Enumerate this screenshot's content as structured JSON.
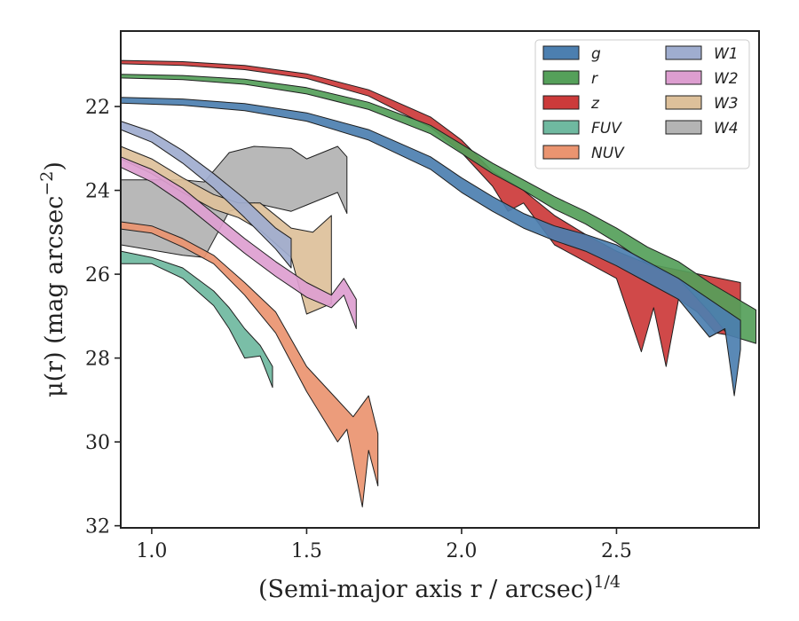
{
  "chart_data": {
    "type": "area",
    "title": "",
    "xlabel": "(Semi-major axis r / arcsec)",
    "xlabel_superscript": "1/4",
    "ylabel": "μ(r) (mag arcsec",
    "ylabel_superscript": "−2",
    "ylabel_suffix": ")",
    "xlim": [
      0.9,
      2.96
    ],
    "ylim": [
      32.05,
      20.2
    ],
    "y_inverted": true,
    "xticks": [
      1.0,
      1.5,
      2.0,
      2.5
    ],
    "xtick_labels": [
      "1.0",
      "1.5",
      "2.0",
      "2.5"
    ],
    "yticks": [
      22,
      24,
      26,
      28,
      30,
      32
    ],
    "ytick_labels": [
      "22",
      "24",
      "26",
      "28",
      "30",
      "32"
    ],
    "grid": false,
    "legend_position": "top-right",
    "legend_columns": 2,
    "series": [
      {
        "name": "g",
        "color": "#4c7fb0",
        "upper": [
          [
            0.9,
            21.78
          ],
          [
            1.1,
            21.82
          ],
          [
            1.3,
            21.93
          ],
          [
            1.5,
            22.15
          ],
          [
            1.7,
            22.55
          ],
          [
            1.9,
            23.2
          ],
          [
            2.0,
            23.7
          ],
          [
            2.1,
            24.15
          ],
          [
            2.2,
            24.55
          ],
          [
            2.3,
            24.85
          ],
          [
            2.4,
            25.05
          ],
          [
            2.5,
            25.3
          ],
          [
            2.6,
            25.7
          ],
          [
            2.7,
            26.1
          ],
          [
            2.8,
            26.6
          ],
          [
            2.9,
            27.1
          ]
        ],
        "lower": [
          [
            0.9,
            21.92
          ],
          [
            1.1,
            21.97
          ],
          [
            1.3,
            22.1
          ],
          [
            1.5,
            22.35
          ],
          [
            1.7,
            22.8
          ],
          [
            1.9,
            23.5
          ],
          [
            2.0,
            24.05
          ],
          [
            2.1,
            24.5
          ],
          [
            2.2,
            24.9
          ],
          [
            2.3,
            25.2
          ],
          [
            2.4,
            25.45
          ],
          [
            2.5,
            25.8
          ],
          [
            2.6,
            26.2
          ],
          [
            2.7,
            26.6
          ],
          [
            2.8,
            27.5
          ],
          [
            2.85,
            27.3
          ],
          [
            2.88,
            28.9
          ],
          [
            2.9,
            27.8
          ]
        ]
      },
      {
        "name": "r",
        "color": "#55a05a",
        "upper": [
          [
            0.9,
            21.23
          ],
          [
            1.1,
            21.26
          ],
          [
            1.3,
            21.35
          ],
          [
            1.5,
            21.55
          ],
          [
            1.7,
            21.9
          ],
          [
            1.9,
            22.45
          ],
          [
            2.0,
            22.9
          ],
          [
            2.1,
            23.35
          ],
          [
            2.2,
            23.75
          ],
          [
            2.3,
            24.15
          ],
          [
            2.4,
            24.5
          ],
          [
            2.5,
            24.9
          ],
          [
            2.6,
            25.35
          ],
          [
            2.7,
            25.7
          ],
          [
            2.8,
            26.2
          ],
          [
            2.95,
            26.85
          ]
        ],
        "lower": [
          [
            0.9,
            21.32
          ],
          [
            1.1,
            21.36
          ],
          [
            1.3,
            21.47
          ],
          [
            1.5,
            21.7
          ],
          [
            1.7,
            22.07
          ],
          [
            1.9,
            22.65
          ],
          [
            2.0,
            23.12
          ],
          [
            2.1,
            23.6
          ],
          [
            2.2,
            24.0
          ],
          [
            2.3,
            24.45
          ],
          [
            2.4,
            24.8
          ],
          [
            2.5,
            25.25
          ],
          [
            2.6,
            25.75
          ],
          [
            2.7,
            26.1
          ],
          [
            2.8,
            26.9
          ],
          [
            2.86,
            27.45
          ],
          [
            2.95,
            27.65
          ]
        ]
      },
      {
        "name": "z",
        "color": "#cc3a3a",
        "upper": [
          [
            0.9,
            20.9
          ],
          [
            1.1,
            20.93
          ],
          [
            1.3,
            21.02
          ],
          [
            1.5,
            21.22
          ],
          [
            1.7,
            21.6
          ],
          [
            1.9,
            22.25
          ],
          [
            2.0,
            22.8
          ],
          [
            2.1,
            23.55
          ],
          [
            2.2,
            24.0
          ],
          [
            2.3,
            24.6
          ],
          [
            2.4,
            25.05
          ],
          [
            2.5,
            25.45
          ],
          [
            2.6,
            25.75
          ],
          [
            2.7,
            25.9
          ],
          [
            2.9,
            26.2
          ]
        ],
        "lower": [
          [
            0.9,
            20.98
          ],
          [
            1.1,
            21.02
          ],
          [
            1.3,
            21.12
          ],
          [
            1.5,
            21.33
          ],
          [
            1.7,
            21.75
          ],
          [
            1.9,
            22.5
          ],
          [
            2.0,
            23.1
          ],
          [
            2.1,
            23.9
          ],
          [
            2.15,
            24.5
          ],
          [
            2.2,
            24.3
          ],
          [
            2.3,
            25.3
          ],
          [
            2.4,
            25.7
          ],
          [
            2.5,
            26.1
          ],
          [
            2.58,
            27.85
          ],
          [
            2.62,
            26.8
          ],
          [
            2.66,
            28.2
          ],
          [
            2.7,
            26.6
          ],
          [
            2.76,
            26.9
          ],
          [
            2.82,
            27.4
          ],
          [
            2.9,
            27.5
          ]
        ]
      },
      {
        "name": "FUV",
        "color": "#6fb9a0",
        "upper": [
          [
            0.9,
            25.45
          ],
          [
            1.0,
            25.6
          ],
          [
            1.1,
            25.85
          ],
          [
            1.2,
            26.4
          ],
          [
            1.25,
            26.8
          ],
          [
            1.3,
            27.3
          ],
          [
            1.35,
            27.7
          ],
          [
            1.39,
            28.2
          ]
        ],
        "lower": [
          [
            0.9,
            25.75
          ],
          [
            1.0,
            25.75
          ],
          [
            1.1,
            26.1
          ],
          [
            1.2,
            26.75
          ],
          [
            1.25,
            27.3
          ],
          [
            1.3,
            28.0
          ],
          [
            1.35,
            27.95
          ],
          [
            1.39,
            28.7
          ]
        ]
      },
      {
        "name": "NUV",
        "color": "#ea9470",
        "upper": [
          [
            0.9,
            24.75
          ],
          [
            1.0,
            24.85
          ],
          [
            1.1,
            25.15
          ],
          [
            1.2,
            25.55
          ],
          [
            1.3,
            26.2
          ],
          [
            1.4,
            26.9
          ],
          [
            1.5,
            28.2
          ],
          [
            1.6,
            29.0
          ],
          [
            1.65,
            29.4
          ],
          [
            1.7,
            28.9
          ],
          [
            1.73,
            29.8
          ]
        ],
        "lower": [
          [
            0.9,
            24.92
          ],
          [
            1.0,
            25.02
          ],
          [
            1.1,
            25.35
          ],
          [
            1.2,
            25.75
          ],
          [
            1.3,
            26.5
          ],
          [
            1.4,
            27.4
          ],
          [
            1.5,
            28.8
          ],
          [
            1.6,
            30.0
          ],
          [
            1.63,
            29.7
          ],
          [
            1.68,
            31.55
          ],
          [
            1.7,
            30.2
          ],
          [
            1.73,
            31.05
          ]
        ]
      },
      {
        "name": "W1",
        "color": "#9fadcf",
        "upper": [
          [
            0.9,
            22.35
          ],
          [
            1.0,
            22.6
          ],
          [
            1.1,
            23.05
          ],
          [
            1.2,
            23.6
          ],
          [
            1.3,
            24.2
          ],
          [
            1.4,
            24.9
          ],
          [
            1.45,
            25.15
          ]
        ],
        "lower": [
          [
            0.9,
            22.55
          ],
          [
            1.0,
            22.85
          ],
          [
            1.1,
            23.35
          ],
          [
            1.2,
            23.95
          ],
          [
            1.3,
            24.65
          ],
          [
            1.4,
            25.4
          ],
          [
            1.45,
            25.85
          ]
        ]
      },
      {
        "name": "W2",
        "color": "#dd9ed0",
        "upper": [
          [
            0.9,
            23.2
          ],
          [
            1.0,
            23.5
          ],
          [
            1.1,
            23.95
          ],
          [
            1.2,
            24.55
          ],
          [
            1.3,
            25.15
          ],
          [
            1.4,
            25.7
          ],
          [
            1.5,
            26.2
          ],
          [
            1.58,
            26.5
          ],
          [
            1.62,
            26.1
          ],
          [
            1.66,
            26.6
          ]
        ],
        "lower": [
          [
            0.9,
            23.45
          ],
          [
            1.0,
            23.8
          ],
          [
            1.1,
            24.3
          ],
          [
            1.2,
            24.9
          ],
          [
            1.3,
            25.5
          ],
          [
            1.4,
            26.05
          ],
          [
            1.5,
            26.55
          ],
          [
            1.58,
            26.8
          ],
          [
            1.62,
            26.5
          ],
          [
            1.66,
            27.3
          ]
        ]
      },
      {
        "name": "W3",
        "color": "#ddc09a",
        "upper": [
          [
            0.9,
            22.95
          ],
          [
            1.0,
            23.25
          ],
          [
            1.1,
            23.7
          ],
          [
            1.2,
            24.1
          ],
          [
            1.28,
            24.3
          ],
          [
            1.35,
            24.3
          ],
          [
            1.45,
            24.9
          ],
          [
            1.52,
            25.0
          ],
          [
            1.58,
            24.6
          ]
        ],
        "lower": [
          [
            0.9,
            23.25
          ],
          [
            1.0,
            23.6
          ],
          [
            1.1,
            24.05
          ],
          [
            1.2,
            24.45
          ],
          [
            1.28,
            24.65
          ],
          [
            1.35,
            24.95
          ],
          [
            1.45,
            25.6
          ],
          [
            1.5,
            26.95
          ],
          [
            1.58,
            26.7
          ]
        ]
      },
      {
        "name": "W4",
        "color": "#b4b4b4",
        "upper": [
          [
            0.9,
            23.75
          ],
          [
            1.1,
            23.75
          ],
          [
            1.17,
            23.8
          ],
          [
            1.25,
            23.1
          ],
          [
            1.33,
            22.95
          ],
          [
            1.45,
            23.0
          ],
          [
            1.5,
            23.25
          ],
          [
            1.6,
            22.95
          ],
          [
            1.63,
            23.2
          ]
        ],
        "lower": [
          [
            0.9,
            25.3
          ],
          [
            1.1,
            25.55
          ],
          [
            1.17,
            25.6
          ],
          [
            1.25,
            24.5
          ],
          [
            1.33,
            24.3
          ],
          [
            1.45,
            24.5
          ],
          [
            1.5,
            24.35
          ],
          [
            1.6,
            24.05
          ],
          [
            1.63,
            24.55
          ]
        ]
      }
    ]
  }
}
